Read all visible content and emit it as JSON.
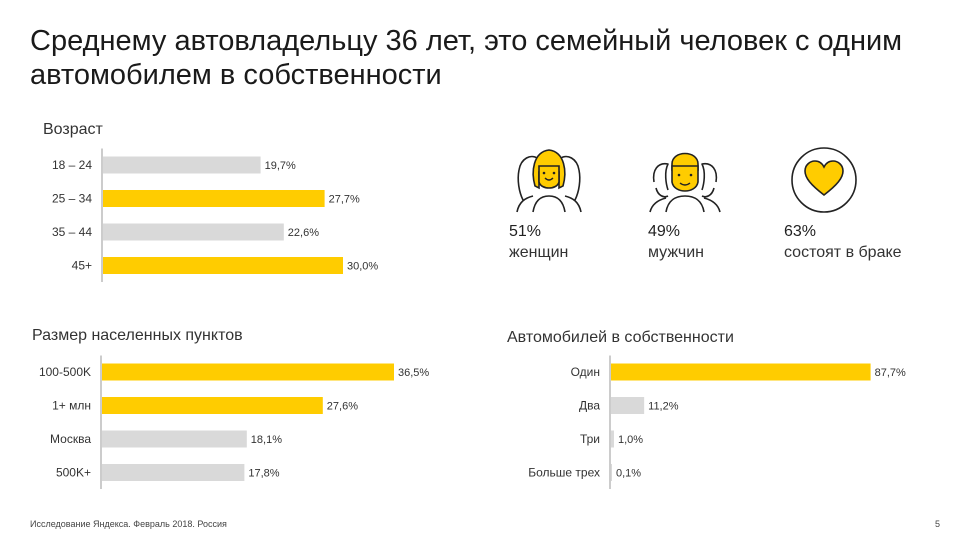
{
  "title": "Среднему автовладельцу 36 лет, это семейный человек с одним автомобилем в собственности",
  "colors": {
    "accent": "#ffcc00",
    "neutral": "#d9d9d9",
    "axis": "#999999"
  },
  "stats": [
    {
      "value": "51%",
      "label": "женщин",
      "icon": "woman-group-icon"
    },
    {
      "value": "49%",
      "label": "мужчин",
      "icon": "man-group-icon"
    },
    {
      "value": "63%",
      "label": "состоят в браке",
      "icon": "heart-icon"
    }
  ],
  "chart_data": [
    {
      "type": "bar",
      "orientation": "horizontal",
      "title": "Возраст",
      "categories": [
        "18 – 24",
        "25 – 34",
        "35 – 44",
        "45+"
      ],
      "values": [
        19.7,
        27.7,
        22.6,
        30.0
      ],
      "value_labels": [
        "19,7%",
        "27,7%",
        "22,6%",
        "30,0%"
      ],
      "highlight": [
        false,
        true,
        false,
        true
      ],
      "xlim": [
        0,
        40
      ]
    },
    {
      "type": "bar",
      "orientation": "horizontal",
      "title": "Размер населенных пунктов",
      "categories": [
        "100-500K",
        "1+ млн",
        "Москва",
        "500K+"
      ],
      "values": [
        36.5,
        27.6,
        18.1,
        17.8
      ],
      "value_labels": [
        "36,5%",
        "27,6%",
        "18,1%",
        "17,8%"
      ],
      "highlight": [
        true,
        true,
        false,
        false
      ],
      "xlim": [
        0,
        40
      ]
    },
    {
      "type": "bar",
      "orientation": "horizontal",
      "title": "Автомобилей в собственности",
      "categories": [
        "Один",
        "Два",
        "Три",
        "Больше трех"
      ],
      "values": [
        87.7,
        11.2,
        1.0,
        0.1
      ],
      "value_labels": [
        "87,7%",
        "11,2%",
        "1,0%",
        "0,1%"
      ],
      "highlight": [
        true,
        false,
        false,
        false
      ],
      "xlim": [
        0,
        100
      ]
    }
  ],
  "footer": "Исследование Яндекса. Февраль 2018. Россия",
  "page_number": "5"
}
